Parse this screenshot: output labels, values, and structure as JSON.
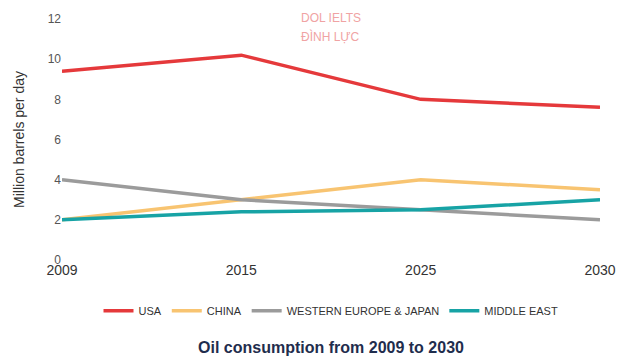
{
  "chart_data": {
    "type": "line",
    "title": "Oil consumption from 2009 to 2030",
    "y_label": "Million barrels per day",
    "annotations": [
      "DOL IELTS",
      "ĐÌNH LỰC"
    ],
    "categories": [
      "2009",
      "2015",
      "2025",
      "2030"
    ],
    "series": [
      {
        "name": "USA",
        "color": "#e5393b",
        "values": [
          9.4,
          10.2,
          8,
          7.6
        ]
      },
      {
        "name": "CHINA",
        "color": "#f8c471",
        "values": [
          2,
          3,
          4,
          3.5
        ]
      },
      {
        "name": "WESTERN EUROPE & JAPAN",
        "color": "#9b9b9b",
        "values": [
          4,
          3,
          2.5,
          2
        ]
      },
      {
        "name": "MIDDLE EAST",
        "color": "#17a3a5",
        "values": [
          2,
          2.4,
          2.5,
          3
        ]
      }
    ],
    "ylim": [
      0,
      12
    ],
    "yticks": [
      0,
      2,
      4,
      6,
      8,
      10,
      12
    ],
    "grid": false,
    "legend": "bottom"
  }
}
